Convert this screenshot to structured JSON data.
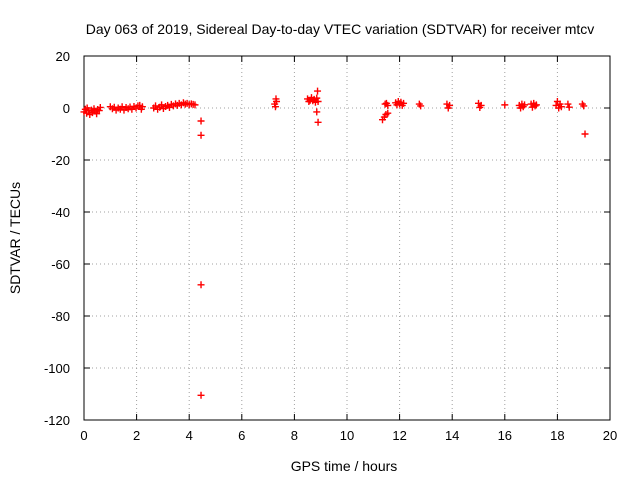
{
  "chart_data": {
    "type": "scatter",
    "title": "Day 063 of 2019, Sidereal Day-to-day VTEC variation (SDTVAR) for receiver mtcv",
    "xlabel": "GPS time / hours",
    "ylabel": "SDTVAR / TECUs",
    "xlim": [
      0,
      20
    ],
    "ylim": [
      -120,
      20
    ],
    "xticks": [
      "0",
      "2",
      "4",
      "6",
      "8",
      "10",
      "12",
      "14",
      "16",
      "18",
      "20"
    ],
    "yticks": [
      "20",
      "0",
      "-20",
      "-40",
      "-60",
      "-80",
      "-100",
      "-120"
    ],
    "grid": true,
    "marker": "plus",
    "color": "#ff0000",
    "series": [
      {
        "name": "SDTVAR",
        "points": [
          [
            0.0,
            -1.5
          ],
          [
            0.05,
            -0.5
          ],
          [
            0.1,
            -2.0
          ],
          [
            0.12,
            0.0
          ],
          [
            0.18,
            -1.0
          ],
          [
            0.22,
            -2.5
          ],
          [
            0.28,
            -0.8
          ],
          [
            0.32,
            -1.8
          ],
          [
            0.38,
            -0.3
          ],
          [
            0.42,
            -1.2
          ],
          [
            0.48,
            -2.2
          ],
          [
            0.52,
            -0.6
          ],
          [
            0.58,
            -1.0
          ],
          [
            0.62,
            0.2
          ],
          [
            1.0,
            0.5
          ],
          [
            1.08,
            -0.3
          ],
          [
            1.15,
            0.3
          ],
          [
            1.22,
            -0.8
          ],
          [
            1.3,
            0.0
          ],
          [
            1.38,
            -0.5
          ],
          [
            1.45,
            0.5
          ],
          [
            1.52,
            -0.8
          ],
          [
            1.6,
            0.2
          ],
          [
            1.68,
            -0.3
          ],
          [
            1.75,
            0.4
          ],
          [
            1.82,
            -0.5
          ],
          [
            1.9,
            0.6
          ],
          [
            1.98,
            0.0
          ],
          [
            2.05,
            0.8
          ],
          [
            2.12,
            1.0
          ],
          [
            2.18,
            -0.5
          ],
          [
            2.22,
            0.5
          ],
          [
            2.65,
            0.0
          ],
          [
            2.72,
            0.8
          ],
          [
            2.8,
            -0.5
          ],
          [
            2.88,
            0.3
          ],
          [
            2.95,
            1.2
          ],
          [
            3.02,
            -0.2
          ],
          [
            3.1,
            0.6
          ],
          [
            3.18,
            1.0
          ],
          [
            3.25,
            0.2
          ],
          [
            3.32,
            1.4
          ],
          [
            3.4,
            0.8
          ],
          [
            3.48,
            1.6
          ],
          [
            3.55,
            1.0
          ],
          [
            3.62,
            1.8
          ],
          [
            3.7,
            1.2
          ],
          [
            3.78,
            2.0
          ],
          [
            3.85,
            1.5
          ],
          [
            3.92,
            1.8
          ],
          [
            4.0,
            1.3
          ],
          [
            4.08,
            1.6
          ],
          [
            4.15,
            1.4
          ],
          [
            4.22,
            1.2
          ],
          [
            4.45,
            -5.0
          ],
          [
            4.45,
            -10.5
          ],
          [
            4.45,
            -68.0
          ],
          [
            4.45,
            -110.5
          ],
          [
            7.25,
            1.5
          ],
          [
            7.3,
            3.5
          ],
          [
            7.32,
            2.5
          ],
          [
            7.28,
            0.5
          ],
          [
            8.5,
            3.5
          ],
          [
            8.55,
            2.5
          ],
          [
            8.6,
            3.0
          ],
          [
            8.65,
            4.0
          ],
          [
            8.7,
            2.8
          ],
          [
            8.75,
            3.3
          ],
          [
            8.8,
            2.2
          ],
          [
            8.85,
            3.8
          ],
          [
            8.9,
            2.5
          ],
          [
            8.88,
            6.5
          ],
          [
            8.85,
            -1.5
          ],
          [
            8.9,
            -5.5
          ],
          [
            11.35,
            -4.5
          ],
          [
            11.42,
            -3.5
          ],
          [
            11.48,
            -2.5
          ],
          [
            11.55,
            -2.0
          ],
          [
            11.45,
            1.5
          ],
          [
            11.5,
            1.8
          ],
          [
            11.55,
            1.0
          ],
          [
            11.85,
            2.0
          ],
          [
            11.9,
            1.2
          ],
          [
            11.95,
            2.5
          ],
          [
            12.0,
            1.5
          ],
          [
            12.05,
            2.2
          ],
          [
            12.1,
            1.0
          ],
          [
            12.15,
            1.8
          ],
          [
            12.75,
            1.5
          ],
          [
            12.8,
            0.8
          ],
          [
            13.8,
            1.5
          ],
          [
            13.85,
            0.0
          ],
          [
            13.9,
            1.0
          ],
          [
            15.0,
            1.8
          ],
          [
            15.05,
            0.2
          ],
          [
            15.1,
            1.0
          ],
          [
            16.0,
            1.2
          ],
          [
            16.55,
            1.0
          ],
          [
            16.6,
            0.0
          ],
          [
            16.65,
            1.5
          ],
          [
            16.7,
            0.5
          ],
          [
            16.75,
            1.2
          ],
          [
            17.0,
            1.5
          ],
          [
            17.05,
            0.3
          ],
          [
            17.1,
            1.8
          ],
          [
            17.15,
            0.8
          ],
          [
            17.2,
            1.2
          ],
          [
            17.95,
            1.0
          ],
          [
            18.0,
            2.5
          ],
          [
            18.05,
            0.0
          ],
          [
            18.1,
            1.5
          ],
          [
            18.15,
            0.5
          ],
          [
            18.4,
            1.5
          ],
          [
            18.45,
            0.3
          ],
          [
            18.95,
            1.5
          ],
          [
            19.0,
            0.8
          ],
          [
            19.05,
            -10.0
          ]
        ]
      }
    ]
  }
}
